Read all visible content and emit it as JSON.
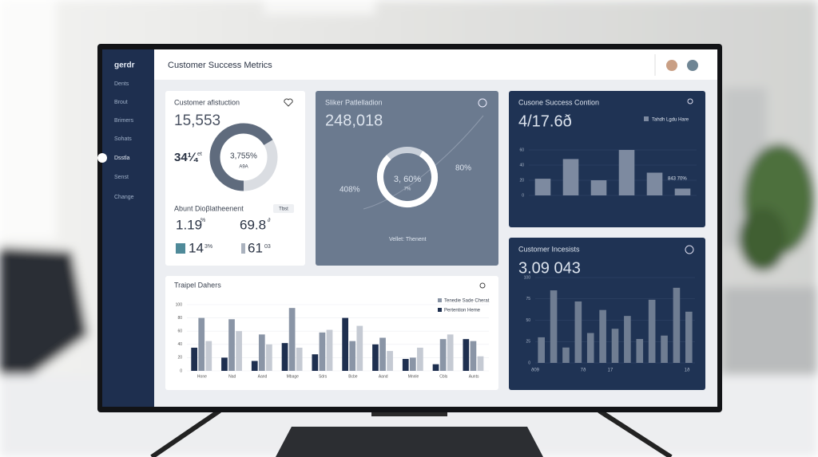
{
  "sidebar": {
    "brand": "gerdr",
    "items": [
      "Dents",
      "Brout",
      "Brimers",
      "Sohats",
      "Dsstla",
      "Senst",
      "Change"
    ]
  },
  "header": {
    "title": "Customer Success Metrics"
  },
  "satisfaction": {
    "title": "Customer afistuction",
    "value": "15,553",
    "donut_value": "3,755%",
    "donut_sub": "A9A",
    "side_value": "34¼",
    "side_unit": "et",
    "section": "Abunt Dioβlatheenent",
    "tag": "Tbst",
    "stats": [
      {
        "value": "1.19",
        "unit": "%"
      },
      {
        "value": "69.8",
        "unit": "∂"
      },
      {
        "value": "14",
        "unit": "3%"
      },
      {
        "value": "61",
        "unit": "03"
      }
    ]
  },
  "pipeline": {
    "title": "Sliker Patlelladion",
    "value": "248,018",
    "ring_value": "3, 60%",
    "ring_sub": "7%",
    "left_label": "408%",
    "right_label": "80%",
    "footer": "Vellet: Thenent"
  },
  "condition": {
    "title": "Cusone Success Contion",
    "value": "4/17.6ð",
    "legend": "Tahdh Lgdu Hare",
    "annotation": "843 70%",
    "chart": {
      "type": "bar",
      "values": [
        22,
        48,
        20,
        60,
        30,
        9
      ],
      "color": "#7d8aa0",
      "ylim": [
        0,
        60
      ],
      "yticks": [
        0,
        20,
        40,
        60
      ],
      "grid": true
    }
  },
  "incidents": {
    "title": "Customer Incesists",
    "value": "3.09 043",
    "chart": {
      "type": "bar",
      "values": [
        30,
        85,
        18,
        72,
        35,
        62,
        40,
        55,
        28,
        74,
        32,
        88,
        60
      ],
      "color": "#6f7d92",
      "ylim": [
        0,
        100
      ],
      "yticks": [
        0,
        25,
        50,
        75,
        100
      ],
      "grid": true,
      "x_labels": [
        "ð09",
        "7ð",
        "17",
        "1ð"
      ]
    }
  },
  "trends": {
    "title": "Traipel Dahers",
    "legend": [
      "Tenedie Sade Cherat",
      "Pertention Heme"
    ],
    "chart": {
      "type": "bar",
      "categories": [
        "Hone",
        "Nad",
        "Aand",
        "Mbage",
        "Sdrs",
        "Bcbe",
        "Aand",
        "Mnnle",
        "Cbls",
        "Aunts"
      ],
      "series": [
        {
          "color": "#1e2f4f",
          "values": [
            35,
            20,
            15,
            42,
            25,
            80,
            40,
            18,
            10,
            48
          ]
        },
        {
          "color": "#8a95a6",
          "values": [
            80,
            78,
            55,
            95,
            58,
            45,
            50,
            20,
            48,
            45
          ]
        },
        {
          "color": "#c5cad3",
          "values": [
            45,
            60,
            40,
            35,
            62,
            68,
            30,
            35,
            55,
            22
          ]
        }
      ],
      "ylim": [
        0,
        100
      ],
      "yticks": [
        0,
        20,
        40,
        60,
        80,
        100
      ],
      "grid": true
    }
  }
}
